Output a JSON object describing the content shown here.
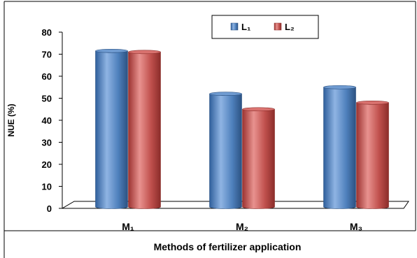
{
  "chart_data": {
    "type": "bar",
    "categories": [
      "M₁",
      "M₂",
      "M₃"
    ],
    "series": [
      {
        "name": "L₁",
        "values": [
          71.5,
          52.0,
          55.0
        ],
        "color": "#4f81bd"
      },
      {
        "name": "L₂",
        "values": [
          71.0,
          45.0,
          48.0
        ],
        "color": "#c0504d"
      }
    ],
    "xlabel": "Methods of fertilizer application",
    "ylabel": "NUE (%)",
    "ylim": [
      0,
      80
    ],
    "yticks": [
      "0",
      "10",
      "20",
      "30",
      "40",
      "50",
      "60",
      "70",
      "80"
    ],
    "grid": false,
    "legend_position": "top-right"
  }
}
